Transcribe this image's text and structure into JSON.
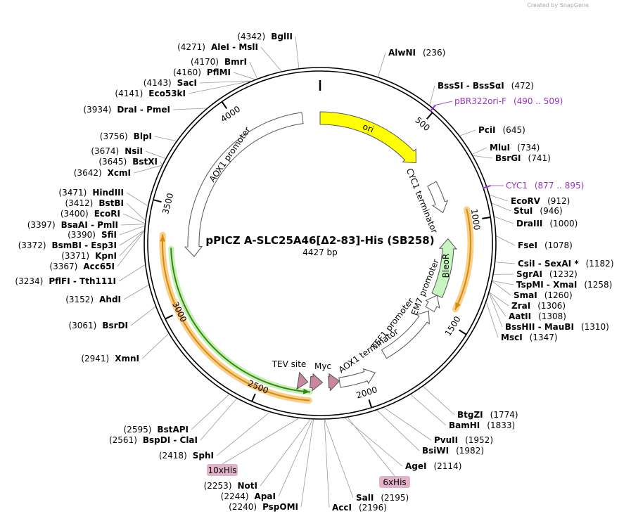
{
  "watermark": "Created by SnapGene",
  "title": "pPICZ A-SLC25A46[Δ2-83]-His (SB258)",
  "length": "4427 bp",
  "sites": [
    {
      "name": "BglII",
      "position": "(4342)"
    },
    {
      "name": "AleI - MslI",
      "position": "(4271)"
    },
    {
      "name": "BmrI",
      "position": "(4170)"
    },
    {
      "name": "PflMI",
      "position": "(4160)"
    },
    {
      "name": "SacI",
      "position": "(4143)"
    },
    {
      "name": "Eco53kI",
      "position": "(4141)"
    },
    {
      "name": "DraI - PmeI",
      "position": "(3934)"
    },
    {
      "name": "BlpI",
      "position": "(3756)"
    },
    {
      "name": "NsiI",
      "position": "(3674)"
    },
    {
      "name": "BstXI",
      "position": "(3645)"
    },
    {
      "name": "XcmI",
      "position": "(3642)"
    },
    {
      "name": "HindIII",
      "position": "(3471)"
    },
    {
      "name": "BstBI",
      "position": "(3412)"
    },
    {
      "name": "EcoRI",
      "position": "(3400)"
    },
    {
      "name": "BsaAI - PmlI",
      "position": "(3397)"
    },
    {
      "name": "SfiI",
      "position": "(3390)"
    },
    {
      "name": "BsmBI - Esp3I",
      "position": "(3372)"
    },
    {
      "name": "KpnI",
      "position": "(3371)"
    },
    {
      "name": "Acc65I",
      "position": "(3367)"
    },
    {
      "name": "PflFI - Tth111I",
      "position": "(3234)"
    },
    {
      "name": "AhdI",
      "position": "(3152)"
    },
    {
      "name": "BsrDI",
      "position": "(3061)"
    },
    {
      "name": "XmnI",
      "position": "(2941)"
    },
    {
      "name": "BstAPI",
      "position": "(2595)"
    },
    {
      "name": "BspDI - ClaI",
      "position": "(2561)"
    },
    {
      "name": "SphI",
      "position": "(2418)"
    },
    {
      "name": "NotI",
      "position": "(2253)"
    },
    {
      "name": "ApaI",
      "position": "(2244)"
    },
    {
      "name": "PspOMI",
      "position": "(2240)"
    },
    {
      "name": "AlwNI",
      "position": "(236)"
    },
    {
      "name": "BssSI - BssSαI",
      "position": "(472)"
    },
    {
      "name": "PciI",
      "position": "(645)"
    },
    {
      "name": "MluI",
      "position": "(734)"
    },
    {
      "name": "BsrGI",
      "position": "(741)"
    },
    {
      "name": "EcoRV",
      "position": "(912)"
    },
    {
      "name": "StuI",
      "position": "(946)"
    },
    {
      "name": "DraIII",
      "position": "(1000)"
    },
    {
      "name": "FseI",
      "position": "(1078)"
    },
    {
      "name": "CsiI - SexAI *",
      "position": "(1182)"
    },
    {
      "name": "SgrAI",
      "position": "(1232)"
    },
    {
      "name": "TspMI - XmaI",
      "position": "(1258)"
    },
    {
      "name": "SmaI",
      "position": "(1260)"
    },
    {
      "name": "ZraI",
      "position": "(1306)"
    },
    {
      "name": "AatII",
      "position": "(1308)"
    },
    {
      "name": "BssHII - MauBI",
      "position": "(1310)"
    },
    {
      "name": "MscI",
      "position": "(1347)"
    },
    {
      "name": "BtgZI",
      "position": "(1774)"
    },
    {
      "name": "BamHI",
      "position": "(1833)"
    },
    {
      "name": "PvuII",
      "position": "(1952)"
    },
    {
      "name": "BsiWI",
      "position": "(1982)"
    },
    {
      "name": "AgeI",
      "position": "(2114)"
    },
    {
      "name": "SalI",
      "position": "(2195)"
    },
    {
      "name": "AccI",
      "position": "(2196)"
    }
  ],
  "primers": [
    {
      "name": "pBR322ori-F",
      "range": "(490 .. 509)"
    },
    {
      "name": "CYC1",
      "range": "(877 .. 895)"
    }
  ],
  "tags": [
    "10xHis",
    "6xHis"
  ],
  "features": [
    "ori",
    "CYC1 terminator",
    "BleoR",
    "EM7 promoter",
    "TEF1 promoter",
    "AOX1 terminator",
    "Myc",
    "TEV site",
    "AOX1 promoter"
  ],
  "ticks": [
    500,
    1000,
    1500,
    2000,
    2500,
    3000,
    3500,
    4000
  ]
}
